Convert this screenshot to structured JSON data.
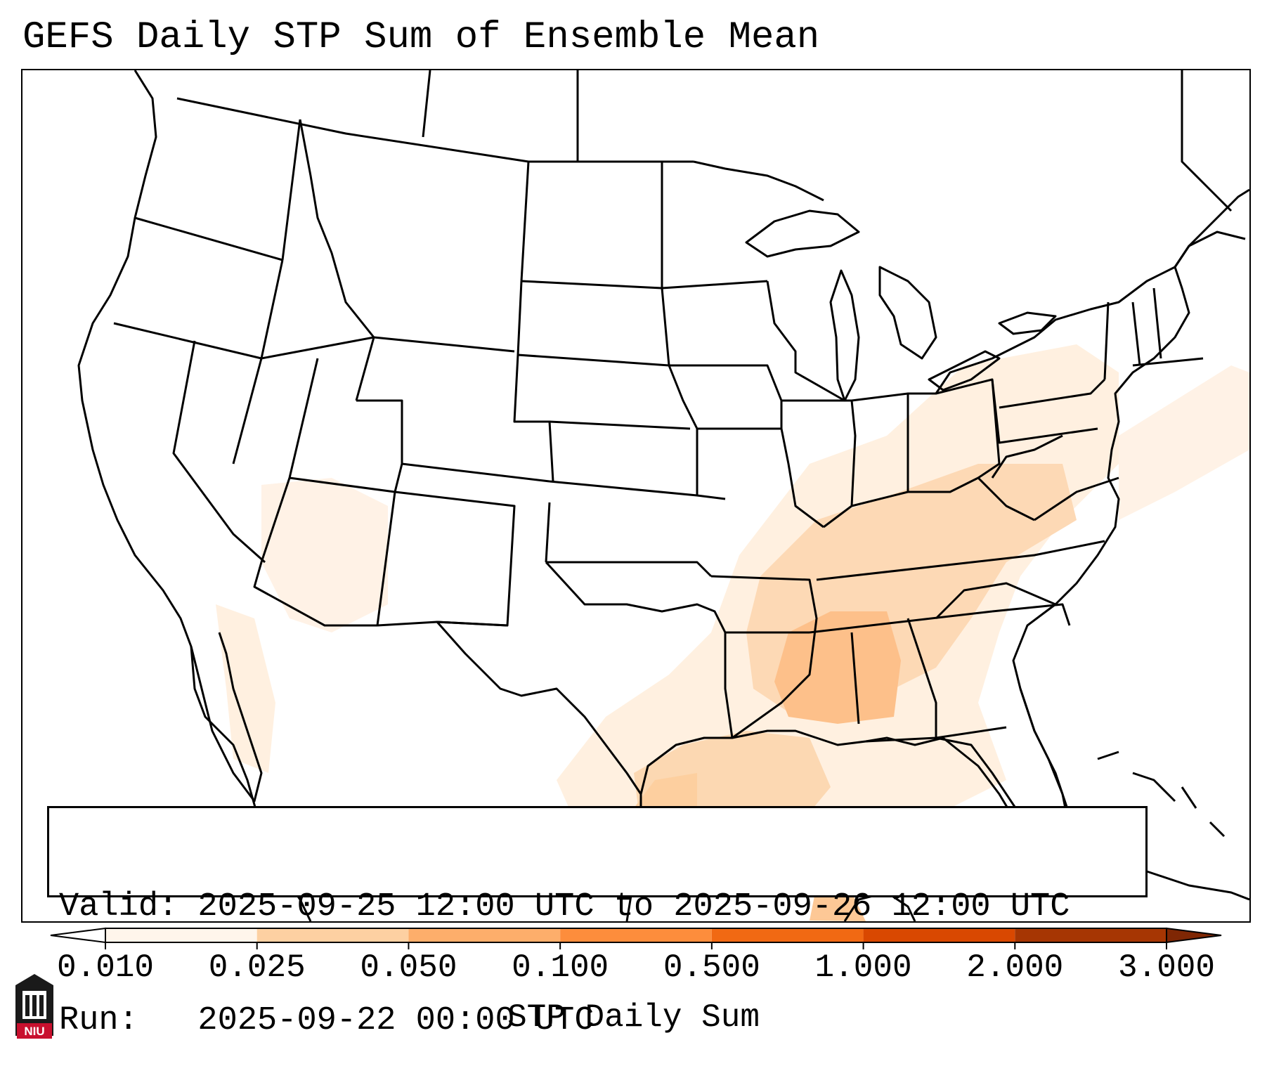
{
  "title": "GEFS Daily STP Sum of Ensemble Mean",
  "info": {
    "valid_line": "Valid: 2025-09-25 12:00 UTC to 2025-09-26 12:00 UTC",
    "run_line": "Run:   2025-09-22 00:00 UTC"
  },
  "colorbar": {
    "label": "STP Daily Sum",
    "ticks": [
      "0.010",
      "0.025",
      "0.050",
      "0.100",
      "0.500",
      "1.000",
      "2.000",
      "3.000"
    ],
    "colors": [
      "#fff5eb",
      "#fee6ce",
      "#fdd0a2",
      "#fdae6b",
      "#fd8d3c",
      "#f16913",
      "#d94801",
      "#a63603"
    ],
    "extend_low_color": "#ffffff",
    "extend_high_color": "#7f2704"
  },
  "map": {
    "region": "CONUS",
    "shading_color_low": "#fff5eb",
    "shading_color_mid": "#fdd0a2",
    "shading_color_high": "#fdae6b",
    "border_color": "#000000"
  },
  "logo": {
    "text": "NIU",
    "color": "#c8102e"
  }
}
